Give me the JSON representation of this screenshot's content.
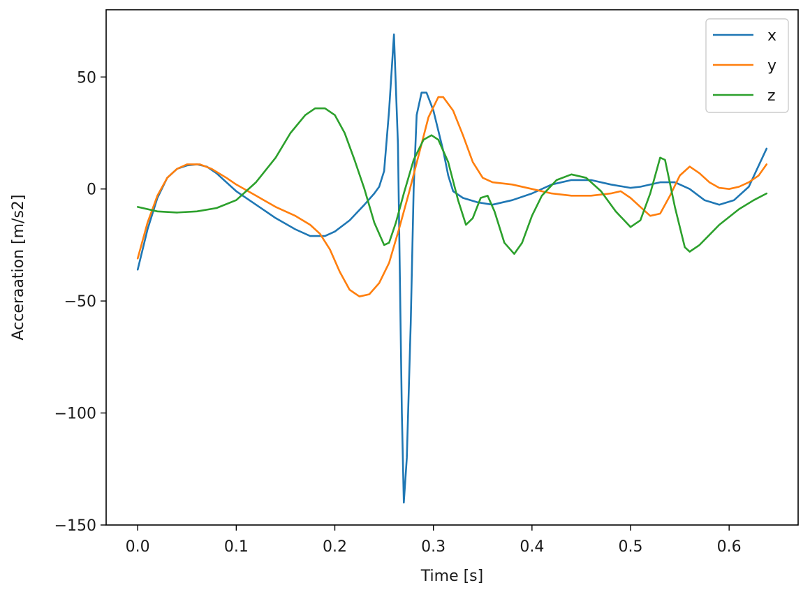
{
  "chart_data": {
    "type": "line",
    "title": "",
    "xlabel": "Time [s]",
    "ylabel": "Acceraation [m/s2]",
    "xlim": [
      -0.032,
      0.67
    ],
    "ylim": [
      -150,
      80
    ],
    "xticks": [
      {
        "value": 0.0,
        "label": "0.0"
      },
      {
        "value": 0.1,
        "label": "0.1"
      },
      {
        "value": 0.2,
        "label": "0.2"
      },
      {
        "value": 0.3,
        "label": "0.3"
      },
      {
        "value": 0.4,
        "label": "0.4"
      },
      {
        "value": 0.5,
        "label": "0.5"
      },
      {
        "value": 0.6,
        "label": "0.6"
      }
    ],
    "yticks": [
      {
        "value": 50,
        "label": "50"
      },
      {
        "value": 0,
        "label": "0"
      },
      {
        "value": -50,
        "label": "−50"
      },
      {
        "value": -100,
        "label": "−100"
      },
      {
        "value": -150,
        "label": "−150"
      }
    ],
    "grid": false,
    "legend_position": "top-right",
    "series": [
      {
        "name": "x",
        "color": "#1f77b4",
        "points": [
          [
            0.0,
            -36
          ],
          [
            0.01,
            -18
          ],
          [
            0.02,
            -4
          ],
          [
            0.03,
            5
          ],
          [
            0.04,
            9
          ],
          [
            0.05,
            10.5
          ],
          [
            0.06,
            11
          ],
          [
            0.07,
            10
          ],
          [
            0.08,
            7
          ],
          [
            0.09,
            3
          ],
          [
            0.1,
            -1
          ],
          [
            0.12,
            -7
          ],
          [
            0.14,
            -13
          ],
          [
            0.16,
            -18
          ],
          [
            0.175,
            -21
          ],
          [
            0.19,
            -21
          ],
          [
            0.2,
            -19
          ],
          [
            0.215,
            -14
          ],
          [
            0.23,
            -7
          ],
          [
            0.24,
            -2
          ],
          [
            0.245,
            1
          ],
          [
            0.25,
            8
          ],
          [
            0.255,
            35
          ],
          [
            0.26,
            69
          ],
          [
            0.264,
            20
          ],
          [
            0.268,
            -100
          ],
          [
            0.27,
            -140
          ],
          [
            0.273,
            -120
          ],
          [
            0.277,
            -60
          ],
          [
            0.28,
            0
          ],
          [
            0.283,
            33
          ],
          [
            0.288,
            43
          ],
          [
            0.293,
            43
          ],
          [
            0.3,
            35
          ],
          [
            0.31,
            17
          ],
          [
            0.315,
            6
          ],
          [
            0.32,
            -1
          ],
          [
            0.33,
            -4
          ],
          [
            0.345,
            -6
          ],
          [
            0.36,
            -7
          ],
          [
            0.38,
            -5
          ],
          [
            0.4,
            -2
          ],
          [
            0.42,
            2
          ],
          [
            0.44,
            4
          ],
          [
            0.46,
            4
          ],
          [
            0.48,
            2
          ],
          [
            0.5,
            0.5
          ],
          [
            0.51,
            1
          ],
          [
            0.53,
            3
          ],
          [
            0.545,
            3
          ],
          [
            0.56,
            0
          ],
          [
            0.575,
            -5
          ],
          [
            0.59,
            -7
          ],
          [
            0.605,
            -5
          ],
          [
            0.62,
            1
          ],
          [
            0.638,
            18
          ]
        ]
      },
      {
        "name": "y",
        "color": "#ff7f0e",
        "points": [
          [
            0.0,
            -31
          ],
          [
            0.01,
            -15
          ],
          [
            0.02,
            -3
          ],
          [
            0.03,
            5
          ],
          [
            0.04,
            9
          ],
          [
            0.05,
            11
          ],
          [
            0.063,
            11
          ],
          [
            0.075,
            9
          ],
          [
            0.09,
            5
          ],
          [
            0.1,
            2
          ],
          [
            0.12,
            -3
          ],
          [
            0.14,
            -8
          ],
          [
            0.16,
            -12
          ],
          [
            0.175,
            -16
          ],
          [
            0.185,
            -20
          ],
          [
            0.195,
            -27
          ],
          [
            0.205,
            -37
          ],
          [
            0.215,
            -45
          ],
          [
            0.225,
            -48
          ],
          [
            0.235,
            -47
          ],
          [
            0.245,
            -42
          ],
          [
            0.255,
            -33
          ],
          [
            0.265,
            -18
          ],
          [
            0.275,
            -2
          ],
          [
            0.285,
            15
          ],
          [
            0.295,
            32
          ],
          [
            0.305,
            41
          ],
          [
            0.31,
            41
          ],
          [
            0.32,
            35
          ],
          [
            0.33,
            24
          ],
          [
            0.34,
            12
          ],
          [
            0.35,
            5
          ],
          [
            0.36,
            3
          ],
          [
            0.38,
            2
          ],
          [
            0.4,
            0
          ],
          [
            0.42,
            -2
          ],
          [
            0.44,
            -3
          ],
          [
            0.46,
            -3
          ],
          [
            0.48,
            -2
          ],
          [
            0.49,
            -1
          ],
          [
            0.5,
            -4
          ],
          [
            0.51,
            -8
          ],
          [
            0.52,
            -12
          ],
          [
            0.53,
            -11
          ],
          [
            0.54,
            -3
          ],
          [
            0.55,
            6
          ],
          [
            0.56,
            10
          ],
          [
            0.57,
            7
          ],
          [
            0.58,
            3
          ],
          [
            0.59,
            0.5
          ],
          [
            0.6,
            0
          ],
          [
            0.61,
            1
          ],
          [
            0.62,
            3
          ],
          [
            0.63,
            6
          ],
          [
            0.638,
            11
          ]
        ]
      },
      {
        "name": "z",
        "color": "#2ca02c",
        "points": [
          [
            0.0,
            -8
          ],
          [
            0.02,
            -10
          ],
          [
            0.04,
            -10.5
          ],
          [
            0.06,
            -10
          ],
          [
            0.08,
            -8.5
          ],
          [
            0.1,
            -5
          ],
          [
            0.12,
            3
          ],
          [
            0.14,
            14
          ],
          [
            0.155,
            25
          ],
          [
            0.17,
            33
          ],
          [
            0.18,
            36
          ],
          [
            0.19,
            36
          ],
          [
            0.2,
            33
          ],
          [
            0.21,
            25
          ],
          [
            0.22,
            13
          ],
          [
            0.23,
            0
          ],
          [
            0.24,
            -15
          ],
          [
            0.25,
            -25
          ],
          [
            0.255,
            -24
          ],
          [
            0.262,
            -15
          ],
          [
            0.27,
            -2
          ],
          [
            0.28,
            13
          ],
          [
            0.29,
            22
          ],
          [
            0.298,
            24
          ],
          [
            0.305,
            22
          ],
          [
            0.315,
            12
          ],
          [
            0.325,
            -5
          ],
          [
            0.333,
            -16
          ],
          [
            0.34,
            -13
          ],
          [
            0.348,
            -4
          ],
          [
            0.355,
            -3
          ],
          [
            0.362,
            -10
          ],
          [
            0.372,
            -24
          ],
          [
            0.382,
            -29
          ],
          [
            0.39,
            -24
          ],
          [
            0.4,
            -12
          ],
          [
            0.41,
            -3
          ],
          [
            0.425,
            4
          ],
          [
            0.44,
            6.5
          ],
          [
            0.455,
            5
          ],
          [
            0.47,
            -1
          ],
          [
            0.485,
            -10
          ],
          [
            0.5,
            -17
          ],
          [
            0.51,
            -14
          ],
          [
            0.52,
            -2
          ],
          [
            0.53,
            14
          ],
          [
            0.535,
            13
          ],
          [
            0.545,
            -8
          ],
          [
            0.555,
            -26
          ],
          [
            0.56,
            -28
          ],
          [
            0.57,
            -25
          ],
          [
            0.59,
            -16
          ],
          [
            0.61,
            -9
          ],
          [
            0.625,
            -5
          ],
          [
            0.638,
            -2
          ]
        ]
      }
    ]
  }
}
